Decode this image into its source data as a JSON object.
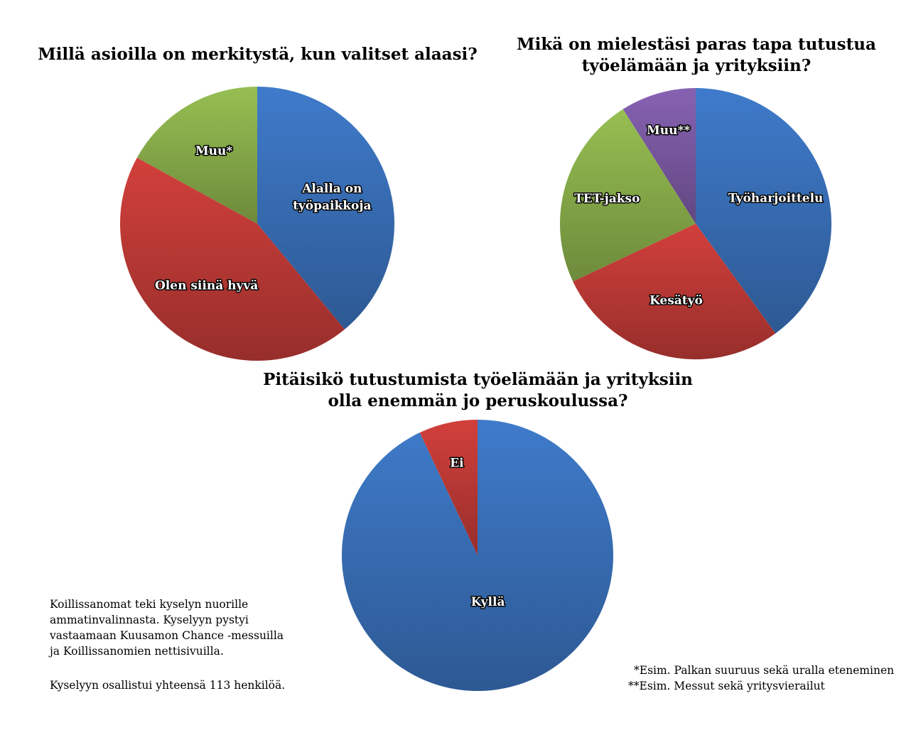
{
  "chart_data": [
    {
      "type": "pie",
      "title": "Millä asioilla on merkitystä, kun valitset alaasi?",
      "slices": [
        {
          "label": "Alalla on työpaikkoja",
          "value": 39,
          "color": "#3a72bc"
        },
        {
          "label": "Olen siinä hyvä",
          "value": 44,
          "color": "#c23b37"
        },
        {
          "label": "Muu*",
          "value": 17,
          "color": "#8cb14c"
        }
      ]
    },
    {
      "type": "pie",
      "title": "Mikä on mielestäsi paras tapa tutustua työelämään ja yrityksiin?",
      "slices": [
        {
          "label": "Työharjoittelu",
          "value": 40,
          "color": "#3a72bc"
        },
        {
          "label": "Kesätyö",
          "value": 28,
          "color": "#c23b37"
        },
        {
          "label": "TET-jakso",
          "value": 23,
          "color": "#8cb14c"
        },
        {
          "label": "Muu**",
          "value": 9,
          "color": "#7d5ba6"
        }
      ]
    },
    {
      "type": "pie",
      "title": "Pitäisikö tutustumista työelämään ja yrityksiin olla enemmän jo peruskoulussa?",
      "slices": [
        {
          "label": "Kyllä",
          "value": 93,
          "color": "#3a72bc"
        },
        {
          "label": "Ei",
          "value": 7,
          "color": "#c23b37"
        }
      ]
    }
  ],
  "titles": {
    "chart1": [
      "Millä asioilla on merkitystä, kun valitset alaasi?"
    ],
    "chart2": [
      "Mikä on mielestäsi paras tapa tutustua",
      "työelämään ja yrityksiin?"
    ],
    "chart3": [
      "Pitäisikö tutustumista työelämään ja yrityksiin",
      "olla enemmän jo peruskoulussa?"
    ]
  },
  "labels": {
    "chart1": [
      [
        "Alalla on",
        "työpaikkoja"
      ],
      [
        "Olen siinä hyvä"
      ],
      [
        "Muu*"
      ]
    ],
    "chart2": [
      [
        "Työharjoittelu"
      ],
      [
        "Kesätyö"
      ],
      [
        "TET-jakso"
      ],
      [
        "Muu**"
      ]
    ],
    "chart3": [
      [
        "Kyllä"
      ],
      [
        "Ei"
      ]
    ]
  },
  "notes": {
    "survey_lines": [
      "Koillissanomat teki kyselyn nuorille",
      "ammatinvalinnasta. Kyselyyn pystyi",
      "vastaamaan Kuusamon Chance -messuilla",
      "ja Koillissanomien nettisivuilla."
    ],
    "total": "Kyselyyn osallistui yhteensä 113 henkilöä.",
    "footnote1": "*Esim. Palkan suuruus sekä uralla eteneminen",
    "footnote2": "**Esim. Messut sekä yritysvierailut"
  }
}
